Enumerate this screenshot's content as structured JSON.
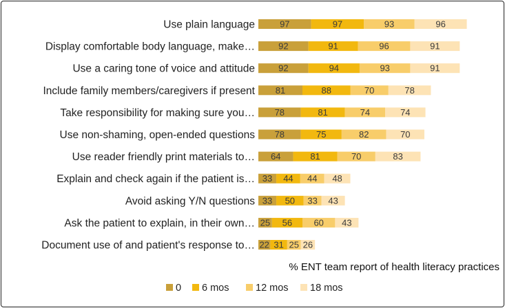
{
  "chart_data": {
    "type": "bar",
    "orientation": "horizontal",
    "stacked": true,
    "title": "",
    "xlabel": "% ENT team report of health literacy practices",
    "ylabel": "",
    "categories": [
      "Use plain language",
      "Display comfortable body language, make…",
      "Use a caring tone of voice and attitude",
      "Include family members/caregivers if present",
      "Take responsibility for making sure you…",
      "Use non-shaming, open-ended questions",
      "Use reader friendly print materials to…",
      "Explain and check again if the patient is…",
      "Avoid asking Y/N questions",
      "Ask the patient to explain, in their own…",
      "Document use of and patient's response to…"
    ],
    "series": [
      {
        "name": "0",
        "color": "#c9a03a",
        "values": [
          97,
          92,
          92,
          81,
          78,
          78,
          64,
          33,
          33,
          25,
          22
        ]
      },
      {
        "name": "6 mos",
        "color": "#f2b80f",
        "values": [
          97,
          91,
          94,
          88,
          81,
          75,
          81,
          44,
          50,
          56,
          31
        ]
      },
      {
        "name": "12 mos",
        "color": "#f8cd6a",
        "values": [
          93,
          96,
          93,
          70,
          74,
          82,
          70,
          44,
          33,
          60,
          25
        ]
      },
      {
        "name": "18 mos",
        "color": "#fde3b5",
        "values": [
          96,
          91,
          91,
          78,
          74,
          70,
          83,
          48,
          43,
          43,
          26
        ]
      }
    ],
    "grid": false,
    "legend_position": "bottom"
  }
}
